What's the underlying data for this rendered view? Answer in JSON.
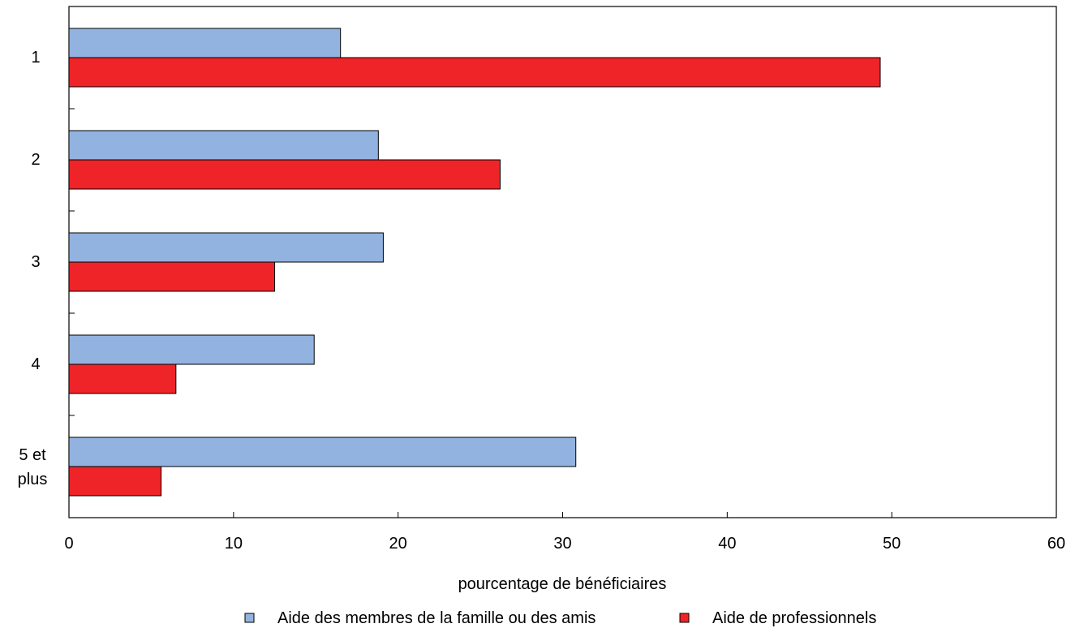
{
  "chart_data": {
    "type": "bar",
    "orientation": "horizontal",
    "categories": [
      "1",
      "2",
      "3",
      "4",
      "5 et plus"
    ],
    "series": [
      {
        "name": "Aide des membres de la famille ou des amis",
        "values": [
          16.5,
          18.8,
          19.1,
          14.9,
          30.8
        ],
        "color": "#92b3e0"
      },
      {
        "name": "Aide de professionnels",
        "values": [
          49.3,
          26.2,
          12.5,
          6.5,
          5.6
        ],
        "color": "#ee2428"
      }
    ],
    "xlabel": "pourcentage de bénéficiaires",
    "ylabel": "",
    "xlim": [
      0,
      60
    ],
    "xticks": [
      0,
      10,
      20,
      30,
      40,
      50,
      60
    ],
    "grid": false,
    "legend_position": "bottom"
  }
}
